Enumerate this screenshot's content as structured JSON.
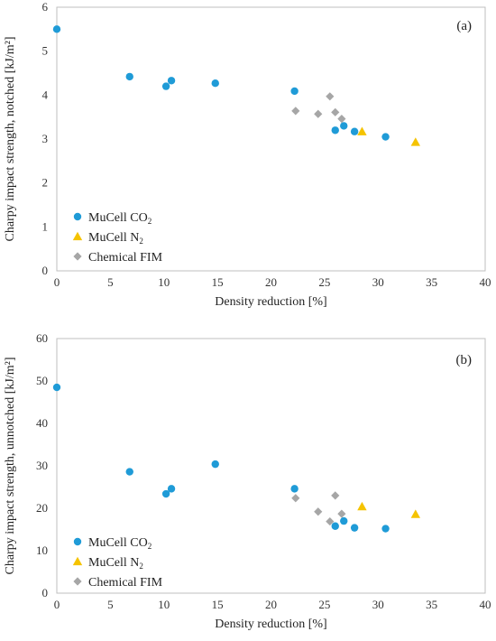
{
  "colors": {
    "mucell_co2": "#1f9bd7",
    "mucell_n2": "#f5c300",
    "chemical_fim": "#a6a6a6",
    "axis": "#bfbfbf"
  },
  "legend": {
    "co2_prefix": "MuCell CO",
    "co2_sub": "2",
    "n2_prefix": "MuCell N",
    "n2_sub": "2",
    "chem": "Chemical FIM"
  },
  "chart_data": [
    {
      "type": "scatter",
      "panel_label": "(a)",
      "xlabel": "Density reduction [%]",
      "ylabel": "Charpy impact strength, notched [kJ/m²]",
      "xlim": [
        0,
        40
      ],
      "ylim": [
        0,
        6
      ],
      "xticks": [
        0,
        5,
        10,
        15,
        20,
        25,
        30,
        35,
        40
      ],
      "yticks": [
        0,
        1,
        2,
        3,
        4,
        5,
        6
      ],
      "grid": false,
      "legend_position": "bottom-left",
      "series": [
        {
          "name": "MuCell CO₂",
          "marker": "circle",
          "points": [
            [
              0,
              5.5
            ],
            [
              6.8,
              4.42
            ],
            [
              10.2,
              4.2
            ],
            [
              10.7,
              4.33
            ],
            [
              14.8,
              4.27
            ],
            [
              22.2,
              4.09
            ],
            [
              26.0,
              3.2
            ],
            [
              26.8,
              3.3
            ],
            [
              27.8,
              3.17
            ],
            [
              30.7,
              3.05
            ]
          ]
        },
        {
          "name": "MuCell N₂",
          "marker": "triangle",
          "points": [
            [
              28.5,
              3.17
            ],
            [
              33.5,
              2.93
            ]
          ]
        },
        {
          "name": "Chemical FIM",
          "marker": "diamond",
          "points": [
            [
              22.3,
              3.64
            ],
            [
              24.4,
              3.57
            ],
            [
              25.5,
              3.97
            ],
            [
              26.0,
              3.61
            ],
            [
              26.6,
              3.46
            ]
          ]
        }
      ]
    },
    {
      "type": "scatter",
      "panel_label": "(b)",
      "xlabel": "Density reduction [%]",
      "ylabel": "Charpy impact strength, unnotched [kJ/m²]",
      "xlim": [
        0,
        40
      ],
      "ylim": [
        0,
        60
      ],
      "xticks": [
        0,
        5,
        10,
        15,
        20,
        25,
        30,
        35,
        40
      ],
      "yticks": [
        0,
        10,
        20,
        30,
        40,
        50,
        60
      ],
      "grid": false,
      "legend_position": "bottom-left",
      "series": [
        {
          "name": "MuCell CO₂",
          "marker": "circle",
          "points": [
            [
              0,
              48.5
            ],
            [
              6.8,
              28.6
            ],
            [
              10.2,
              23.4
            ],
            [
              10.7,
              24.6
            ],
            [
              14.8,
              30.4
            ],
            [
              22.2,
              24.6
            ],
            [
              26.0,
              15.8
            ],
            [
              26.8,
              17.0
            ],
            [
              27.8,
              15.4
            ],
            [
              30.7,
              15.2
            ]
          ]
        },
        {
          "name": "MuCell N₂",
          "marker": "triangle",
          "points": [
            [
              28.5,
              20.4
            ],
            [
              33.5,
              18.6
            ]
          ]
        },
        {
          "name": "Chemical FIM",
          "marker": "diamond",
          "points": [
            [
              22.3,
              22.4
            ],
            [
              24.4,
              19.2
            ],
            [
              25.5,
              16.9
            ],
            [
              26.0,
              23.0
            ],
            [
              26.6,
              18.7
            ]
          ]
        }
      ]
    }
  ]
}
